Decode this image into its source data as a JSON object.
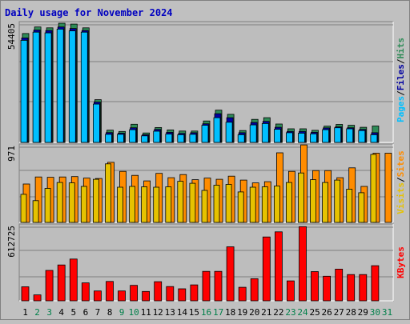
{
  "title": "Daily usage for November 2024",
  "colors": {
    "background": "#c0c0c0",
    "plot_background": "#bdbdbd",
    "title": "#0000c0",
    "hits": "#2e8b57",
    "files": "#0000a0",
    "pages": "#00bfff",
    "visits": "#e6c200",
    "sites": "#ff8c00",
    "kbytes": "#ff0000",
    "weekend_day": "#00804a",
    "weekday": "#000000"
  },
  "chart_data": [
    {
      "type": "bar",
      "name": "top-panel",
      "ymax_label": "54405",
      "ylim": [
        0,
        54405
      ],
      "legend": [
        "Pages",
        "Files",
        "Hits"
      ],
      "categories": [
        "1",
        "2",
        "3",
        "4",
        "5",
        "6",
        "7",
        "8",
        "9",
        "10",
        "11",
        "12",
        "13",
        "14",
        "15",
        "16",
        "17",
        "18",
        "19",
        "20",
        "21",
        "22",
        "23",
        "24",
        "25",
        "26",
        "27",
        "28",
        "29",
        "30",
        "31"
      ],
      "weekend": [
        2,
        3,
        9,
        10,
        16,
        17,
        23,
        24,
        30,
        31
      ],
      "series": [
        {
          "name": "Hits",
          "values": [
            49700,
            52700,
            52300,
            54400,
            54000,
            52300,
            19500,
            5600,
            5000,
            8300,
            4300,
            6800,
            5700,
            5200,
            5200,
            9800,
            14700,
            12800,
            5400,
            10500,
            11300,
            8400,
            6200,
            6200,
            5500,
            7400,
            8200,
            7800,
            6900,
            7500,
            0
          ]
        },
        {
          "name": "Files",
          "values": [
            47700,
            51300,
            51100,
            52700,
            52000,
            51100,
            18400,
            4500,
            4200,
            6700,
            3500,
            5900,
            4600,
            4100,
            4400,
            8500,
            13100,
            11300,
            4400,
            9100,
            9600,
            6900,
            5000,
            5000,
            4600,
            6600,
            7100,
            6700,
            5900,
            4400,
            0
          ]
        },
        {
          "name": "Pages",
          "values": [
            46600,
            50300,
            50000,
            51700,
            50900,
            50300,
            17500,
            3700,
            3700,
            5800,
            3000,
            5100,
            3800,
            3500,
            3700,
            7800,
            11300,
            9200,
            3500,
            8000,
            8600,
            6000,
            4400,
            4200,
            3900,
            5800,
            6700,
            6200,
            5400,
            3500,
            0
          ]
        }
      ]
    },
    {
      "type": "bar",
      "name": "middle-panel",
      "ymax_label": "971",
      "ylim": [
        0,
        971
      ],
      "legend": [
        "Visits",
        "Sites"
      ],
      "series": [
        {
          "name": "Visits",
          "values": [
            355,
            275,
            430,
            505,
            500,
            455,
            545,
            740,
            445,
            455,
            450,
            445,
            450,
            520,
            495,
            405,
            470,
            480,
            385,
            445,
            450,
            460,
            505,
            625,
            540,
            505,
            535,
            420,
            375,
            860,
            0
          ]
        },
        {
          "name": "Sites",
          "values": [
            485,
            575,
            570,
            575,
            580,
            560,
            555,
            760,
            645,
            595,
            525,
            620,
            565,
            605,
            540,
            560,
            545,
            585,
            535,
            500,
            515,
            880,
            645,
            980,
            655,
            655,
            565,
            690,
            455,
            875,
            875
          ]
        }
      ]
    },
    {
      "type": "bar",
      "name": "bottom-panel",
      "ymax_label": "612725",
      "ylim": [
        0,
        612725
      ],
      "legend": [
        "KBytes"
      ],
      "series": [
        {
          "name": "KBytes",
          "values": [
            114000,
            48000,
            248000,
            292000,
            340000,
            146000,
            80000,
            158000,
            80000,
            126000,
            76000,
            156000,
            116000,
            98000,
            130000,
            240000,
            240000,
            440000,
            110000,
            180000,
            520000,
            562000,
            162000,
            604000,
            238000,
            200000,
            258000,
            214000,
            214000,
            286000,
            0
          ]
        }
      ]
    }
  ]
}
